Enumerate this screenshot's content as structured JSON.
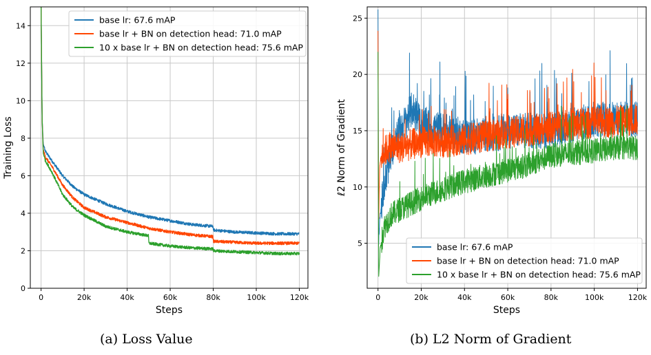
{
  "colors": {
    "base": "#1f77b4",
    "bn": "#ff4500",
    "bn10x": "#2ca02c",
    "grid": "#c8c8c8"
  },
  "captions": {
    "a": "(a)  Loss Value",
    "b": "(b)  L2 Norm of Gradient"
  },
  "chart_data": [
    {
      "type": "line",
      "title": "",
      "xlabel": "Steps",
      "ylabel": "Training Loss",
      "xlim": [
        -5000,
        124000
      ],
      "ylim": [
        0,
        15
      ],
      "xticks": [
        0,
        20000,
        40000,
        60000,
        80000,
        100000,
        120000
      ],
      "xtick_labels": [
        "0",
        "20k",
        "40k",
        "60k",
        "80k",
        "100k",
        "120k"
      ],
      "yticks": [
        0,
        2,
        4,
        6,
        8,
        10,
        12,
        14
      ],
      "ytick_labels": [
        "0",
        "2",
        "4",
        "6",
        "8",
        "10",
        "12",
        "14"
      ],
      "grid": true,
      "legend_position": "top-right",
      "series": [
        {
          "name": "base lr: 67.6 mAP",
          "color_key": "base",
          "noise": 0.08,
          "x": [
            0,
            500,
            1000,
            2000,
            5000,
            10000,
            15000,
            20000,
            30000,
            40000,
            50000,
            60000,
            70000,
            79900,
            80100,
            90000,
            100000,
            110000,
            120000
          ],
          "y": [
            15,
            9.0,
            7.7,
            7.3,
            6.8,
            6.0,
            5.4,
            5.0,
            4.5,
            4.1,
            3.8,
            3.6,
            3.4,
            3.3,
            3.1,
            3.0,
            2.95,
            2.9,
            2.9
          ]
        },
        {
          "name": "base lr + BN on detection head: 71.0 mAP",
          "color_key": "bn",
          "noise": 0.08,
          "x": [
            0,
            500,
            1000,
            2000,
            5000,
            10000,
            15000,
            20000,
            30000,
            40000,
            50000,
            60000,
            70000,
            79900,
            80100,
            90000,
            100000,
            110000,
            120000
          ],
          "y": [
            15,
            9.0,
            7.4,
            7.0,
            6.5,
            5.5,
            4.8,
            4.3,
            3.8,
            3.5,
            3.2,
            3.0,
            2.85,
            2.75,
            2.5,
            2.45,
            2.4,
            2.4,
            2.4
          ]
        },
        {
          "name": "10 x base lr + BN on detection head: 75.6 mAP",
          "color_key": "bn10x",
          "noise": 0.08,
          "x": [
            0,
            500,
            1000,
            2000,
            5000,
            10000,
            15000,
            20000,
            30000,
            40000,
            49900,
            50100,
            60000,
            70000,
            79900,
            80100,
            90000,
            100000,
            110000,
            120000
          ],
          "y": [
            15,
            9.0,
            7.2,
            6.8,
            6.2,
            5.0,
            4.3,
            3.9,
            3.3,
            3.0,
            2.8,
            2.4,
            2.25,
            2.15,
            2.1,
            2.0,
            1.95,
            1.9,
            1.85,
            1.85
          ]
        }
      ]
    },
    {
      "type": "line",
      "title": "",
      "xlabel": "Steps",
      "ylabel": "ℓ2 Norm of Gradient",
      "xlim": [
        -5000,
        124000
      ],
      "ylim": [
        1,
        26
      ],
      "xticks": [
        0,
        20000,
        40000,
        60000,
        80000,
        100000,
        120000
      ],
      "xtick_labels": [
        "0",
        "20k",
        "40k",
        "60k",
        "80k",
        "100k",
        "120k"
      ],
      "yticks": [
        5,
        10,
        15,
        20,
        25
      ],
      "ytick_labels": [
        "5",
        "10",
        "15",
        "20",
        "25"
      ],
      "grid": true,
      "legend_position": "bottom-right",
      "series": [
        {
          "name": "base lr: 67.6 mAP",
          "color_key": "base",
          "noise": 1.6,
          "x": [
            0,
            300,
            800,
            2000,
            5000,
            8000,
            12000,
            16000,
            20000,
            30000,
            40000,
            50000,
            60000,
            70000,
            80000,
            90000,
            100000,
            110000,
            120000
          ],
          "y": [
            26,
            5.0,
            7.0,
            9.0,
            12.0,
            14.5,
            15.5,
            17.0,
            15.5,
            15.0,
            14.5,
            14.5,
            15.0,
            15.0,
            15.0,
            15.5,
            16.0,
            16.0,
            16.0
          ]
        },
        {
          "name": "base lr + BN on detection head: 71.0 mAP",
          "color_key": "bn",
          "noise": 1.4,
          "x": [
            0,
            300,
            800,
            2000,
            5000,
            10000,
            20000,
            30000,
            40000,
            50000,
            60000,
            70000,
            80000,
            90000,
            100000,
            110000,
            120000
          ],
          "y": [
            24,
            7.0,
            12.0,
            13.0,
            13.5,
            13.5,
            14.0,
            14.0,
            14.2,
            14.5,
            14.8,
            15.0,
            15.3,
            15.5,
            15.7,
            15.8,
            16.0
          ]
        },
        {
          "name": "10 x base lr + BN on detection head: 75.6 mAP",
          "color_key": "bn10x",
          "noise": 1.1,
          "x": [
            0,
            300,
            1000,
            3000,
            6000,
            10000,
            20000,
            30000,
            40000,
            50000,
            60000,
            70000,
            80000,
            90000,
            100000,
            110000,
            120000
          ],
          "y": [
            22,
            2.0,
            4.5,
            6.5,
            7.5,
            8.0,
            9.0,
            9.8,
            10.5,
            11.0,
            11.5,
            12.0,
            12.8,
            13.0,
            13.2,
            13.5,
            13.5
          ]
        }
      ]
    }
  ]
}
